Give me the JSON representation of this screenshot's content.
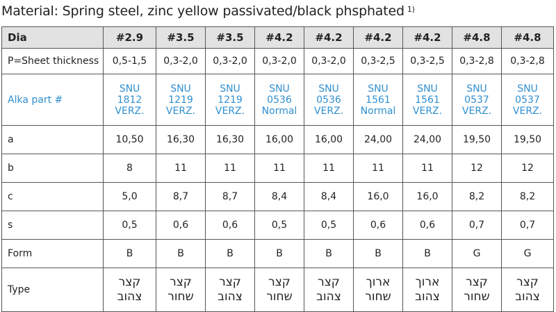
{
  "caption": {
    "text": "Material: Spring steel, zinc yellow passivated/black phsphated",
    "footnote": "1)"
  },
  "table": {
    "header": {
      "label": "Dia",
      "cells": [
        "#2.9",
        "#3.5",
        "#3.5",
        "#4.2",
        "#4.2",
        "#4.2",
        "#4.2",
        "#4.8",
        "#4.8"
      ]
    },
    "thickness": {
      "label": "P=Sheet thickness",
      "cells": [
        "0,5-1,5",
        "0,3-2,0",
        "0,3-2,0",
        "0,3-2,0",
        "0,3-2,0",
        "0,3-2,5",
        "0,3-2,5",
        "0,3-2,8",
        "0,3-2,8"
      ]
    },
    "part": {
      "label": "Alka part #",
      "cells": [
        [
          "SNU",
          "1812",
          "VERZ."
        ],
        [
          "SNU",
          "1219",
          "VERZ."
        ],
        [
          "SNU",
          "1219",
          "VERZ."
        ],
        [
          "SNU",
          "0536",
          "Normal"
        ],
        [
          "SNU",
          "0536",
          "VERZ."
        ],
        [
          "SNU",
          "1561",
          "Normal"
        ],
        [
          "SNU",
          "1561",
          "VERZ."
        ],
        [
          "SNU",
          "0537",
          "VERZ."
        ],
        [
          "SNU",
          "0537",
          "VERZ."
        ]
      ]
    },
    "a": {
      "label": "a",
      "cells": [
        "10,50",
        "16,30",
        "16,30",
        "16,00",
        "16,00",
        "24,00",
        "24,00",
        "19,50",
        "19,50"
      ]
    },
    "b": {
      "label": "b",
      "cells": [
        "8",
        "11",
        "11",
        "11",
        "11",
        "11",
        "11",
        "12",
        "12"
      ]
    },
    "c": {
      "label": "c",
      "cells": [
        "5,0",
        "8,7",
        "8,7",
        "8,4",
        "8,4",
        "16,0",
        "16,0",
        "8,2",
        "8,2"
      ]
    },
    "s": {
      "label": "s",
      "cells": [
        "0,5",
        "0,6",
        "0,6",
        "0,5",
        "0,5",
        "0,6",
        "0,6",
        "0,7",
        "0,7"
      ]
    },
    "form": {
      "label": "Form",
      "cells": [
        "B",
        "B",
        "B",
        "B",
        "B",
        "B",
        "B",
        "G",
        "G"
      ]
    },
    "type": {
      "label": "Type",
      "cells": [
        [
          "קצר",
          "צהוב"
        ],
        [
          "קצר",
          "שחור"
        ],
        [
          "קצר",
          "צהוב"
        ],
        [
          "קצר",
          "שחור"
        ],
        [
          "קצר",
          "צהוב"
        ],
        [
          "ארוך",
          "שחור"
        ],
        [
          "ארוך",
          "צהוב"
        ],
        [
          "קצר",
          "שחור"
        ],
        [
          "קצר",
          "צהוב"
        ]
      ]
    }
  },
  "colors": {
    "header_bg": "#e2e2e2",
    "part_text": "#2f8fd0",
    "border": "#555555"
  }
}
